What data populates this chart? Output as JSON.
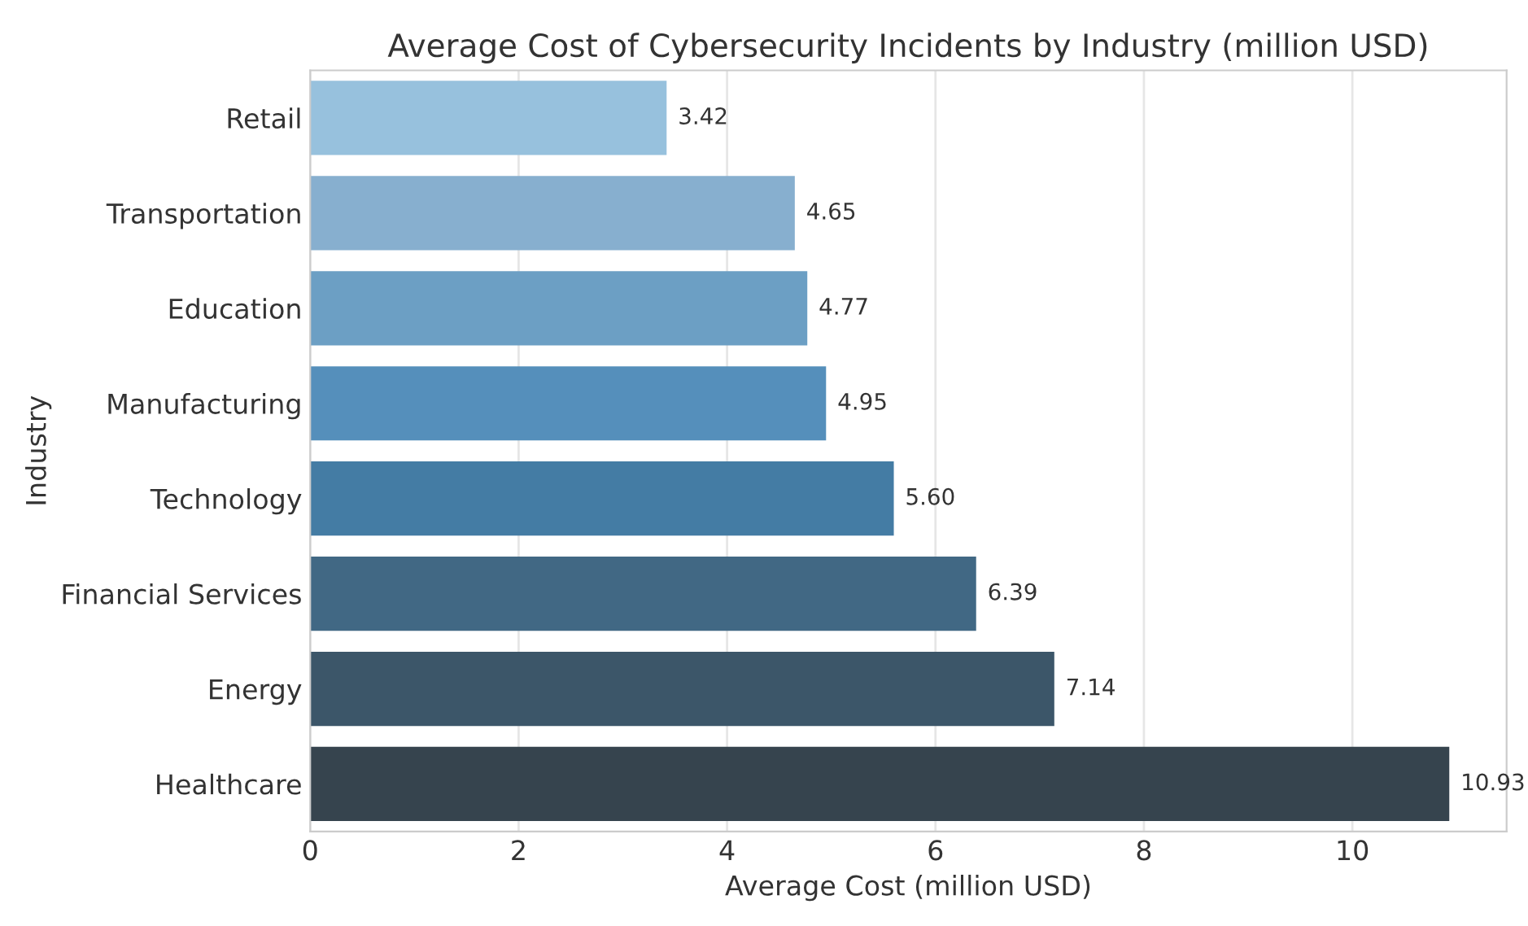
{
  "chart_data": {
    "type": "bar",
    "orientation": "horizontal",
    "title": "Average Cost of Cybersecurity Incidents by Industry (million USD)",
    "xlabel": "Average Cost (million USD)",
    "ylabel": "Industry",
    "categories": [
      "Retail",
      "Transportation",
      "Education",
      "Manufacturing",
      "Technology",
      "Financial Services",
      "Energy",
      "Healthcare"
    ],
    "values": [
      3.42,
      4.65,
      4.77,
      4.95,
      5.6,
      6.39,
      7.14,
      10.93
    ],
    "value_labels": [
      "3.42",
      "4.65",
      "4.77",
      "4.95",
      "5.60",
      "6.39",
      "7.14",
      "10.93"
    ],
    "colors": [
      "#97c1dd",
      "#87afcf",
      "#6c9fc4",
      "#558fbb",
      "#447ca4",
      "#416884",
      "#3c5669",
      "#36444e"
    ],
    "xlim": [
      0,
      11.48
    ],
    "xticks": [
      0,
      2,
      4,
      6,
      8,
      10
    ],
    "grid": "x",
    "legend": false
  }
}
